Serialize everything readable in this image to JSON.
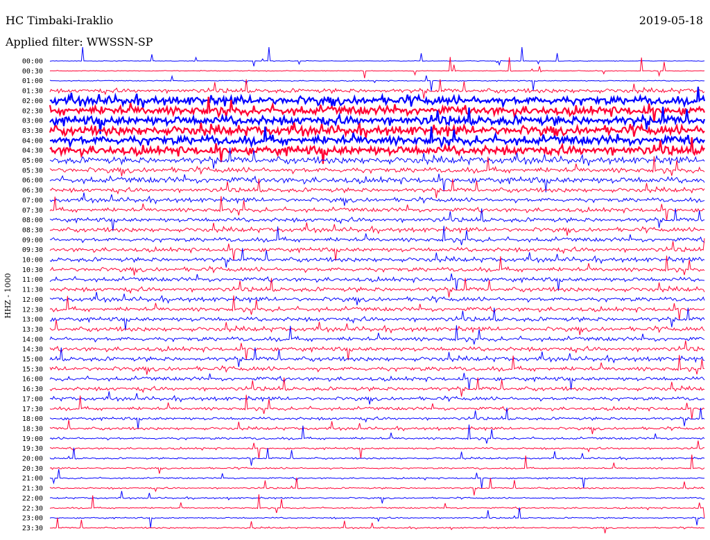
{
  "header": {
    "station": "HC Timbaki-Iraklio",
    "date": "2019-05-18",
    "filter": "Applied filter: WWSSN-SP"
  },
  "channel_label": "HHZ - 1000",
  "colors": {
    "even_rows": "#0000ff",
    "odd_rows": "#ff0033"
  },
  "chart_data": {
    "type": "line",
    "title": "HC Timbaki-Iraklio",
    "subtitle": "Applied filter: WWSSN-SP",
    "date": "2019-05-18",
    "ylabel": "HHZ - 1000",
    "xlabel": "",
    "grid": false,
    "legend": "none",
    "row_minutes": 30,
    "categories": [
      "00:00",
      "00:30",
      "01:00",
      "01:30",
      "02:00",
      "02:30",
      "03:00",
      "03:30",
      "04:00",
      "04:30",
      "05:00",
      "05:30",
      "06:00",
      "06:30",
      "07:00",
      "07:30",
      "08:00",
      "08:30",
      "09:00",
      "09:30",
      "10:00",
      "10:30",
      "11:00",
      "11:30",
      "12:00",
      "12:30",
      "13:00",
      "13:30",
      "14:00",
      "14:30",
      "15:00",
      "15:30",
      "16:00",
      "16:30",
      "17:00",
      "17:30",
      "18:00",
      "18:30",
      "19:00",
      "19:30",
      "20:00",
      "20:30",
      "21:00",
      "21:30",
      "22:00",
      "22:30",
      "23:00",
      "23:30"
    ],
    "relative_activity": [
      0.06,
      0.08,
      0.1,
      0.45,
      0.9,
      0.95,
      0.95,
      0.95,
      0.95,
      0.95,
      0.7,
      0.55,
      0.65,
      0.45,
      0.45,
      0.45,
      0.45,
      0.45,
      0.45,
      0.45,
      0.45,
      0.45,
      0.45,
      0.45,
      0.45,
      0.45,
      0.45,
      0.45,
      0.45,
      0.45,
      0.45,
      0.45,
      0.42,
      0.4,
      0.38,
      0.35,
      0.3,
      0.28,
      0.25,
      0.2,
      0.18,
      0.17,
      0.16,
      0.16,
      0.16,
      0.16,
      0.15,
      0.15
    ]
  }
}
